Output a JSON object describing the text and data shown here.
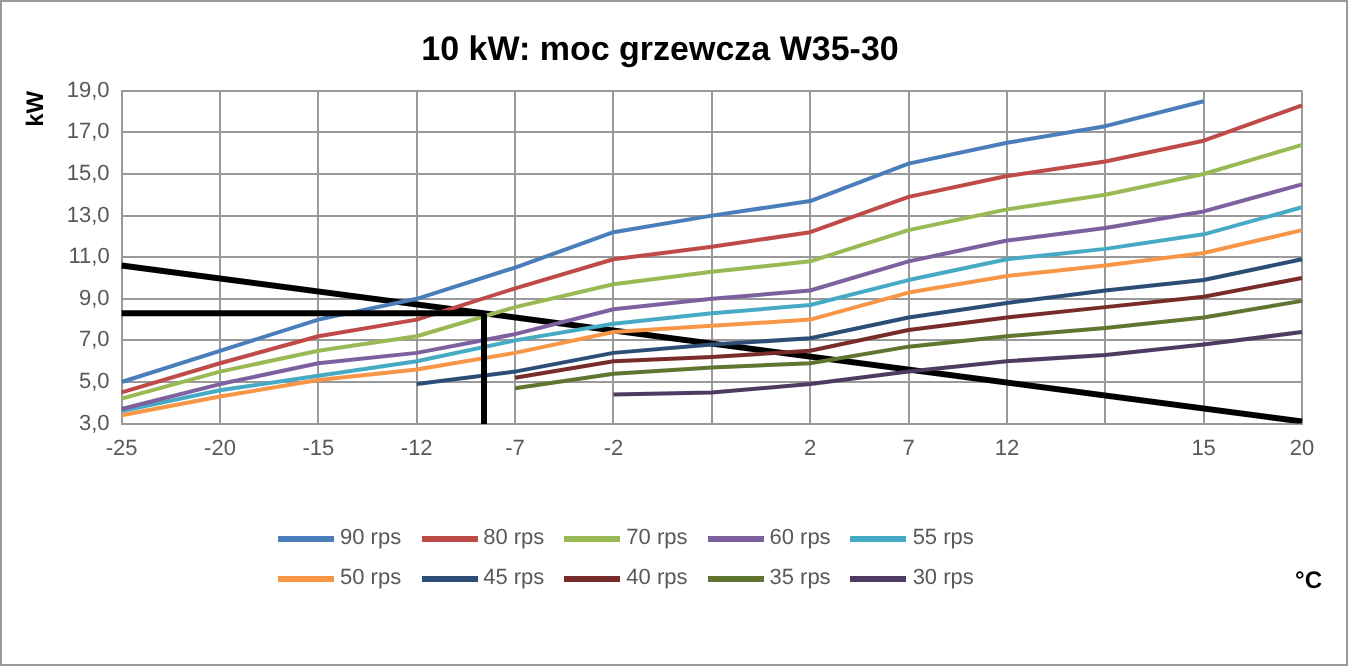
{
  "chart_data": {
    "type": "line",
    "title": "10 kW: moc grzewcza W35-30",
    "annotations": [
      "°C"
    ],
    "ylabel": "kW",
    "categories": [
      "-25",
      "-20",
      "-15",
      "-12",
      "-7",
      "-2",
      null,
      "2",
      "7",
      "12",
      null,
      "15",
      "20"
    ],
    "series": [
      {
        "name": "90 rps",
        "color": "#4a7ebb",
        "values": [
          5.0,
          6.5,
          8.0,
          9.0,
          10.5,
          12.2,
          13.0,
          13.7,
          15.5,
          16.5,
          17.3,
          18.5,
          null
        ]
      },
      {
        "name": "80 rps",
        "color": "#be4b48",
        "values": [
          4.5,
          5.9,
          7.2,
          8.0,
          9.5,
          10.9,
          11.5,
          12.2,
          13.9,
          14.9,
          15.6,
          16.6,
          18.3
        ]
      },
      {
        "name": "70 rps",
        "color": "#98b954",
        "values": [
          4.2,
          5.5,
          6.5,
          7.2,
          8.6,
          9.7,
          10.3,
          10.8,
          12.3,
          13.3,
          14.0,
          15.0,
          16.4
        ]
      },
      {
        "name": "60 rps",
        "color": "#7d60a0",
        "values": [
          3.7,
          4.9,
          5.9,
          6.4,
          7.3,
          8.5,
          9.0,
          9.4,
          10.8,
          11.8,
          12.4,
          13.2,
          14.5
        ]
      },
      {
        "name": "55 rps",
        "color": "#46aac5",
        "values": [
          3.6,
          4.6,
          5.3,
          6.0,
          7.0,
          7.8,
          8.3,
          8.7,
          9.9,
          10.9,
          11.4,
          12.1,
          13.4
        ]
      },
      {
        "name": "50 rps",
        "color": "#f79646",
        "values": [
          3.4,
          4.3,
          5.1,
          5.6,
          6.4,
          7.4,
          7.7,
          8.0,
          9.3,
          10.1,
          10.6,
          11.2,
          12.3
        ]
      },
      {
        "name": "45 rps",
        "color": "#2c4d75",
        "values": [
          null,
          null,
          null,
          4.9,
          5.5,
          6.4,
          6.8,
          7.1,
          8.1,
          8.8,
          9.4,
          9.9,
          10.9
        ]
      },
      {
        "name": "40 rps",
        "color": "#772c2a",
        "values": [
          null,
          null,
          null,
          null,
          5.2,
          6.0,
          6.2,
          6.5,
          7.5,
          8.1,
          8.6,
          9.1,
          10.0
        ]
      },
      {
        "name": "35 rps",
        "color": "#5f7530",
        "values": [
          null,
          null,
          null,
          null,
          4.7,
          5.4,
          5.7,
          5.9,
          6.7,
          7.2,
          7.6,
          8.1,
          8.9
        ]
      },
      {
        "name": "30 rps",
        "color": "#4d3b62",
        "values": [
          null,
          null,
          null,
          null,
          null,
          4.4,
          4.5,
          4.9,
          5.5,
          6.0,
          6.3,
          6.8,
          7.4
        ]
      },
      {
        "color": "#000000",
        "values": [
          10.6,
          null,
          null,
          null,
          null,
          null,
          null,
          null,
          null,
          null,
          null,
          null,
          3.1
        ]
      }
    ],
    "ref_lines": [
      {
        "axis": "y",
        "value": 8.3,
        "color": "#000000"
      }
    ],
    "ylim": [
      3,
      19
    ],
    "yticks": [
      {
        "value": 3,
        "label": "3,0"
      },
      {
        "value": 5,
        "label": "5,0"
      },
      {
        "value": 7,
        "label": "7,0"
      },
      {
        "value": 9,
        "label": "9,0"
      },
      {
        "value": 11,
        "label": "11,0"
      },
      {
        "value": 13,
        "label": "13,0"
      },
      {
        "value": 15,
        "label": "15,0"
      },
      {
        "value": 17,
        "label": "17,0"
      },
      {
        "value": 19,
        "label": "19,0"
      }
    ],
    "grid": true,
    "legend": "bottom",
    "marker": "none",
    "line_style": "solid"
  }
}
